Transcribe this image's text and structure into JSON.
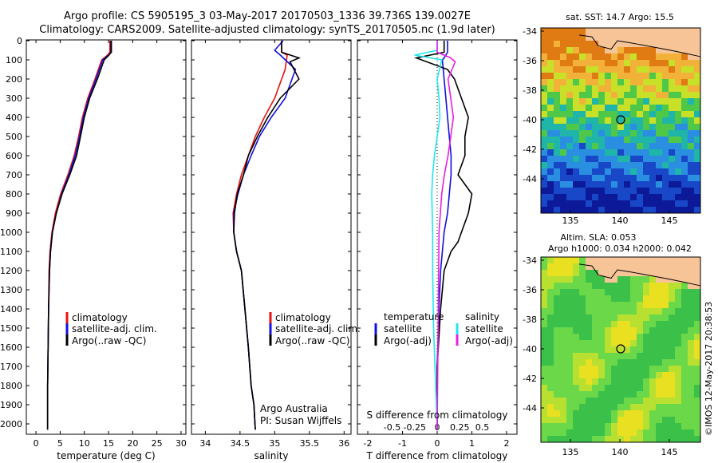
{
  "header": {
    "line1": "Argo profile: CS 5905195_3 03-May-2017 20170503_1336 39.736S 139.0027E",
    "line2": "Climatology: CARS2009. Satellite-adjusted climatology: synTS_20170505.nc (1.9d later)"
  },
  "colors": {
    "climatology": "#e8120c",
    "satellite": "#1010e0",
    "argo": "#000000",
    "sat_salinity": "#1fe6f0",
    "argo_adj_salinity": "#e81ee0",
    "land": "#f7c497"
  },
  "depth_ticks": [
    "0",
    "100",
    "200",
    "300",
    "400",
    "500",
    "600",
    "700",
    "800",
    "900",
    "1000",
    "1100",
    "1200",
    "1300",
    "1400",
    "1500",
    "1600",
    "1700",
    "1800",
    "1900",
    "2000"
  ],
  "temperature_panel": {
    "xlabel": "temperature (deg C)",
    "xticks": [
      "0",
      "5",
      "10",
      "15",
      "20",
      "25",
      "30"
    ],
    "legend": [
      "climatology",
      "satellite-adj. clim.",
      "Argo(..raw -QC)"
    ]
  },
  "salinity_panel": {
    "xlabel": "salinity",
    "xticks": [
      "34",
      "34.5",
      "35",
      "35.5",
      "36"
    ],
    "legend": [
      "climatology",
      "satellite-adj. clim.",
      "Argo(..raw -QC)"
    ],
    "note1": "Argo Australia",
    "note2": "PI: Susan Wijffels"
  },
  "difference_panel": {
    "xlabel": "T difference from climatology",
    "s_title": "S difference from climatology",
    "t_ticks": [
      "-2",
      "-1",
      "0",
      "1",
      "2"
    ],
    "s_ticks": [
      "-0.5",
      "-0.25",
      "0",
      "0.25",
      "0.5"
    ],
    "temp_legend_title": "temperature",
    "sal_legend_title": "salinity",
    "legend_satellite": "satellite",
    "legend_argo": "Argo(-adj)"
  },
  "sst_map": {
    "title": "sat. SST: 14.7 Argo: 15.5",
    "lat_ticks": [
      "-34",
      "-36",
      "-38",
      "-40",
      "-42",
      "-44"
    ],
    "lon_ticks": [
      "135",
      "140",
      "145"
    ]
  },
  "sla_map": {
    "title1": "Altim. SLA: 0.053",
    "title2": "Argo h1000: 0.034 h2000: 0.042",
    "lat_ticks": [
      "-34",
      "-36",
      "-38",
      "-40",
      "-42",
      "-44"
    ],
    "lon_ticks": [
      "135",
      "140",
      "145"
    ]
  },
  "credit": "©IMOS 12-May-2017 20:38:53",
  "chart_data": [
    {
      "type": "line",
      "title": "",
      "xlabel": "temperature (deg C)",
      "ylabel": "",
      "xlim": [
        -2,
        31
      ],
      "ylim": [
        2060,
        0
      ],
      "series": [
        {
          "name": "climatology",
          "x": [
            15.3,
            15.3,
            14.8,
            13.6,
            12.2,
            10.7,
            9.6,
            8.8,
            7.9,
            6.6,
            5.1,
            4.0,
            3.3,
            2.9,
            2.7,
            2.6,
            2.5,
            2.4,
            2.4
          ],
          "y": [
            0,
            60,
            75,
            100,
            200,
            300,
            400,
            500,
            600,
            700,
            800,
            900,
            1000,
            1100,
            1200,
            1400,
            1600,
            1800,
            2030
          ]
        },
        {
          "name": "satellite-adj. clim.",
          "x": [
            15.6,
            15.6,
            15.0,
            13.8,
            12.4,
            10.9,
            9.8,
            9.0,
            8.1,
            6.8,
            5.3,
            4.2,
            3.4,
            3.0,
            2.8,
            2.6,
            2.5,
            2.4,
            2.4
          ],
          "y": [
            0,
            60,
            75,
            100,
            200,
            300,
            400,
            500,
            600,
            700,
            800,
            900,
            1000,
            1100,
            1200,
            1400,
            1600,
            1800,
            2030
          ]
        },
        {
          "name": "Argo(..raw -QC)",
          "x": [
            15.5,
            15.5,
            15.1,
            14.1,
            12.7,
            11.1,
            10.0,
            9.2,
            8.4,
            7.0,
            5.4,
            4.2,
            3.4,
            3.0,
            2.8,
            2.6,
            2.5,
            2.4,
            2.4
          ],
          "y": [
            0,
            60,
            75,
            100,
            200,
            300,
            400,
            500,
            600,
            700,
            800,
            900,
            1000,
            1100,
            1200,
            1400,
            1600,
            1800,
            2030
          ]
        }
      ]
    },
    {
      "type": "line",
      "title": "",
      "xlabel": "salinity",
      "ylabel": "",
      "xlim": [
        33.8,
        36.1
      ],
      "ylim": [
        2060,
        0
      ],
      "series": [
        {
          "name": "climatology",
          "x": [
            35.1,
            35.1,
            35.18,
            35.15,
            35.0,
            34.85,
            34.72,
            34.62,
            34.52,
            34.45,
            34.4,
            34.41,
            34.45,
            34.52,
            34.57,
            34.62,
            34.66,
            34.7,
            34.72
          ],
          "y": [
            0,
            60,
            75,
            150,
            300,
            400,
            500,
            600,
            700,
            800,
            900,
            1000,
            1100,
            1200,
            1400,
            1600,
            1800,
            1900,
            2030
          ]
        },
        {
          "name": "satellite-adj. clim.",
          "x": [
            35.12,
            35.0,
            35.08,
            35.3,
            35.15,
            34.95,
            34.78,
            34.66,
            34.55,
            34.47,
            34.41,
            34.41,
            34.45,
            34.52,
            34.57,
            34.62,
            34.66,
            34.7,
            34.72
          ],
          "y": [
            0,
            50,
            75,
            150,
            300,
            400,
            500,
            600,
            700,
            800,
            900,
            1000,
            1100,
            1200,
            1400,
            1600,
            1800,
            1900,
            2030
          ]
        },
        {
          "name": "Argo(..raw -QC)",
          "x": [
            35.1,
            35.1,
            35.35,
            35.22,
            35.35,
            35.08,
            34.9,
            34.75,
            34.62,
            34.55,
            34.46,
            34.42,
            34.41,
            34.45,
            34.52,
            34.57,
            34.62,
            34.66,
            34.7,
            34.72
          ],
          "y": [
            0,
            60,
            90,
            110,
            200,
            300,
            400,
            500,
            600,
            700,
            800,
            900,
            1000,
            1100,
            1200,
            1400,
            1600,
            1800,
            1900,
            2030
          ]
        }
      ]
    },
    {
      "type": "line",
      "title": "",
      "xlabel": "T difference from climatology",
      "ylabel": "",
      "xlim": [
        -2.3,
        2.3
      ],
      "ylim": [
        2060,
        0
      ],
      "series": [
        {
          "name": "temperature satellite",
          "x": [
            0.3,
            0.3,
            0.2,
            0.15,
            0.2,
            0.25,
            0.3,
            0.35,
            0.4,
            0.4,
            0.35,
            0.3,
            0.2,
            0.1,
            0.05,
            0.0,
            0.0
          ],
          "y": [
            0,
            60,
            90,
            100,
            200,
            300,
            400,
            500,
            600,
            700,
            800,
            900,
            1000,
            1200,
            1400,
            1700,
            2030
          ]
        },
        {
          "name": "temperature Argo(-adj)",
          "x": [
            0.2,
            0.2,
            -0.6,
            0.3,
            0.5,
            0.7,
            0.9,
            0.8,
            0.8,
            0.6,
            1.0,
            0.9,
            0.7,
            0.6,
            0.4,
            0.2,
            0.1,
            0.0,
            0.0
          ],
          "y": [
            0,
            60,
            90,
            150,
            200,
            300,
            400,
            500,
            600,
            700,
            800,
            900,
            1000,
            1050,
            1100,
            1200,
            1400,
            1700,
            2030
          ]
        },
        {
          "name": "salinity satellite",
          "x": [
            0.0,
            0.0,
            -0.25,
            0.05,
            0.0,
            0.02,
            0.03,
            0.0,
            -0.03,
            -0.05,
            -0.06,
            -0.05,
            -0.05,
            -0.04,
            0.0
          ],
          "y": [
            0,
            50,
            75,
            100,
            200,
            300,
            400,
            500,
            600,
            700,
            800,
            1000,
            1200,
            1500,
            2030
          ]
        },
        {
          "name": "salinity Argo(-adj)",
          "x": [
            0.0,
            0.0,
            0.15,
            0.2,
            0.12,
            0.15,
            0.18,
            0.15,
            0.12,
            0.08,
            0.05,
            0.02,
            0.0
          ],
          "y": [
            0,
            60,
            90,
            110,
            200,
            300,
            400,
            500,
            600,
            700,
            800,
            1000,
            2030
          ]
        }
      ]
    }
  ]
}
